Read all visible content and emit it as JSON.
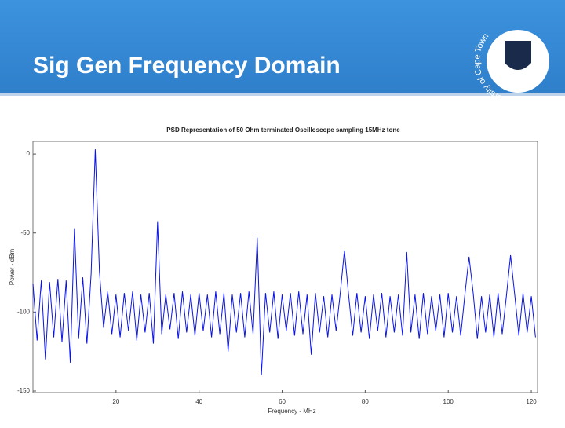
{
  "slide_title": "Sig Gen Frequency Domain",
  "logo_text": "University of Cape Town",
  "chart_data": {
    "type": "line",
    "title": "PSD Representation of 50 Ohm terminated Oscilloscope sampling 15MHz tone",
    "xlabel": "Frequency - MHz",
    "ylabel": "Power - dBm",
    "color": "#0a14e6",
    "x": [
      0,
      1,
      2,
      3,
      4,
      5,
      6,
      7,
      8,
      9,
      10,
      11,
      12,
      13,
      14,
      15,
      16,
      17,
      18,
      19,
      20,
      21,
      22,
      23,
      24,
      25,
      26,
      27,
      28,
      29,
      30,
      31,
      32,
      33,
      34,
      35,
      36,
      37,
      38,
      39,
      40,
      41,
      42,
      43,
      44,
      45,
      46,
      47,
      48,
      49,
      50,
      51,
      52,
      53,
      54,
      55,
      56,
      57,
      58,
      59,
      60,
      61,
      62,
      63,
      64,
      65,
      66,
      67,
      68,
      69,
      70,
      71,
      72,
      73,
      74,
      75,
      76,
      77,
      78,
      79,
      80,
      81,
      82,
      83,
      84,
      85,
      86,
      87,
      88,
      89,
      90,
      91,
      92,
      93,
      94,
      95,
      96,
      97,
      98,
      99,
      100,
      101,
      102,
      103,
      104,
      105,
      106,
      107,
      108,
      109,
      110,
      111,
      112,
      113,
      114,
      115,
      116,
      117,
      118,
      119,
      120,
      121
    ],
    "values": [
      -82,
      -118,
      -80,
      -130,
      -81,
      -116,
      -79,
      -119,
      -80,
      -132,
      -47,
      -117,
      -78,
      -120,
      -76,
      3,
      -74,
      -110,
      -87,
      -114,
      -89,
      -116,
      -88,
      -112,
      -87,
      -118,
      -89,
      -113,
      -88,
      -120,
      -43,
      -114,
      -89,
      -111,
      -88,
      -117,
      -87,
      -113,
      -89,
      -115,
      -88,
      -112,
      -89,
      -116,
      -87,
      -114,
      -88,
      -125,
      -89,
      -113,
      -88,
      -116,
      -87,
      -114,
      -53,
      -140,
      -88,
      -113,
      -87,
      -117,
      -89,
      -112,
      -88,
      -115,
      -87,
      -114,
      -89,
      -127,
      -88,
      -113,
      -90,
      -116,
      -89,
      -112,
      -88,
      -61,
      -89,
      -115,
      -88,
      -113,
      -90,
      -117,
      -89,
      -112,
      -88,
      -116,
      -90,
      -113,
      -89,
      -115,
      -62,
      -113,
      -89,
      -117,
      -88,
      -114,
      -90,
      -112,
      -89,
      -116,
      -88,
      -113,
      -90,
      -115,
      -89,
      -65,
      -88,
      -117,
      -90,
      -113,
      -89,
      -116,
      -88,
      -114,
      -90,
      -64,
      -89,
      -115,
      -88,
      -113,
      -90,
      -116
    ],
    "xlim": [
      0,
      121.5
    ],
    "ylim": [
      -151,
      8
    ],
    "xticks": [
      20,
      40,
      60,
      80,
      100,
      120
    ],
    "yticks": [
      0,
      -50,
      -100,
      -150
    ]
  }
}
